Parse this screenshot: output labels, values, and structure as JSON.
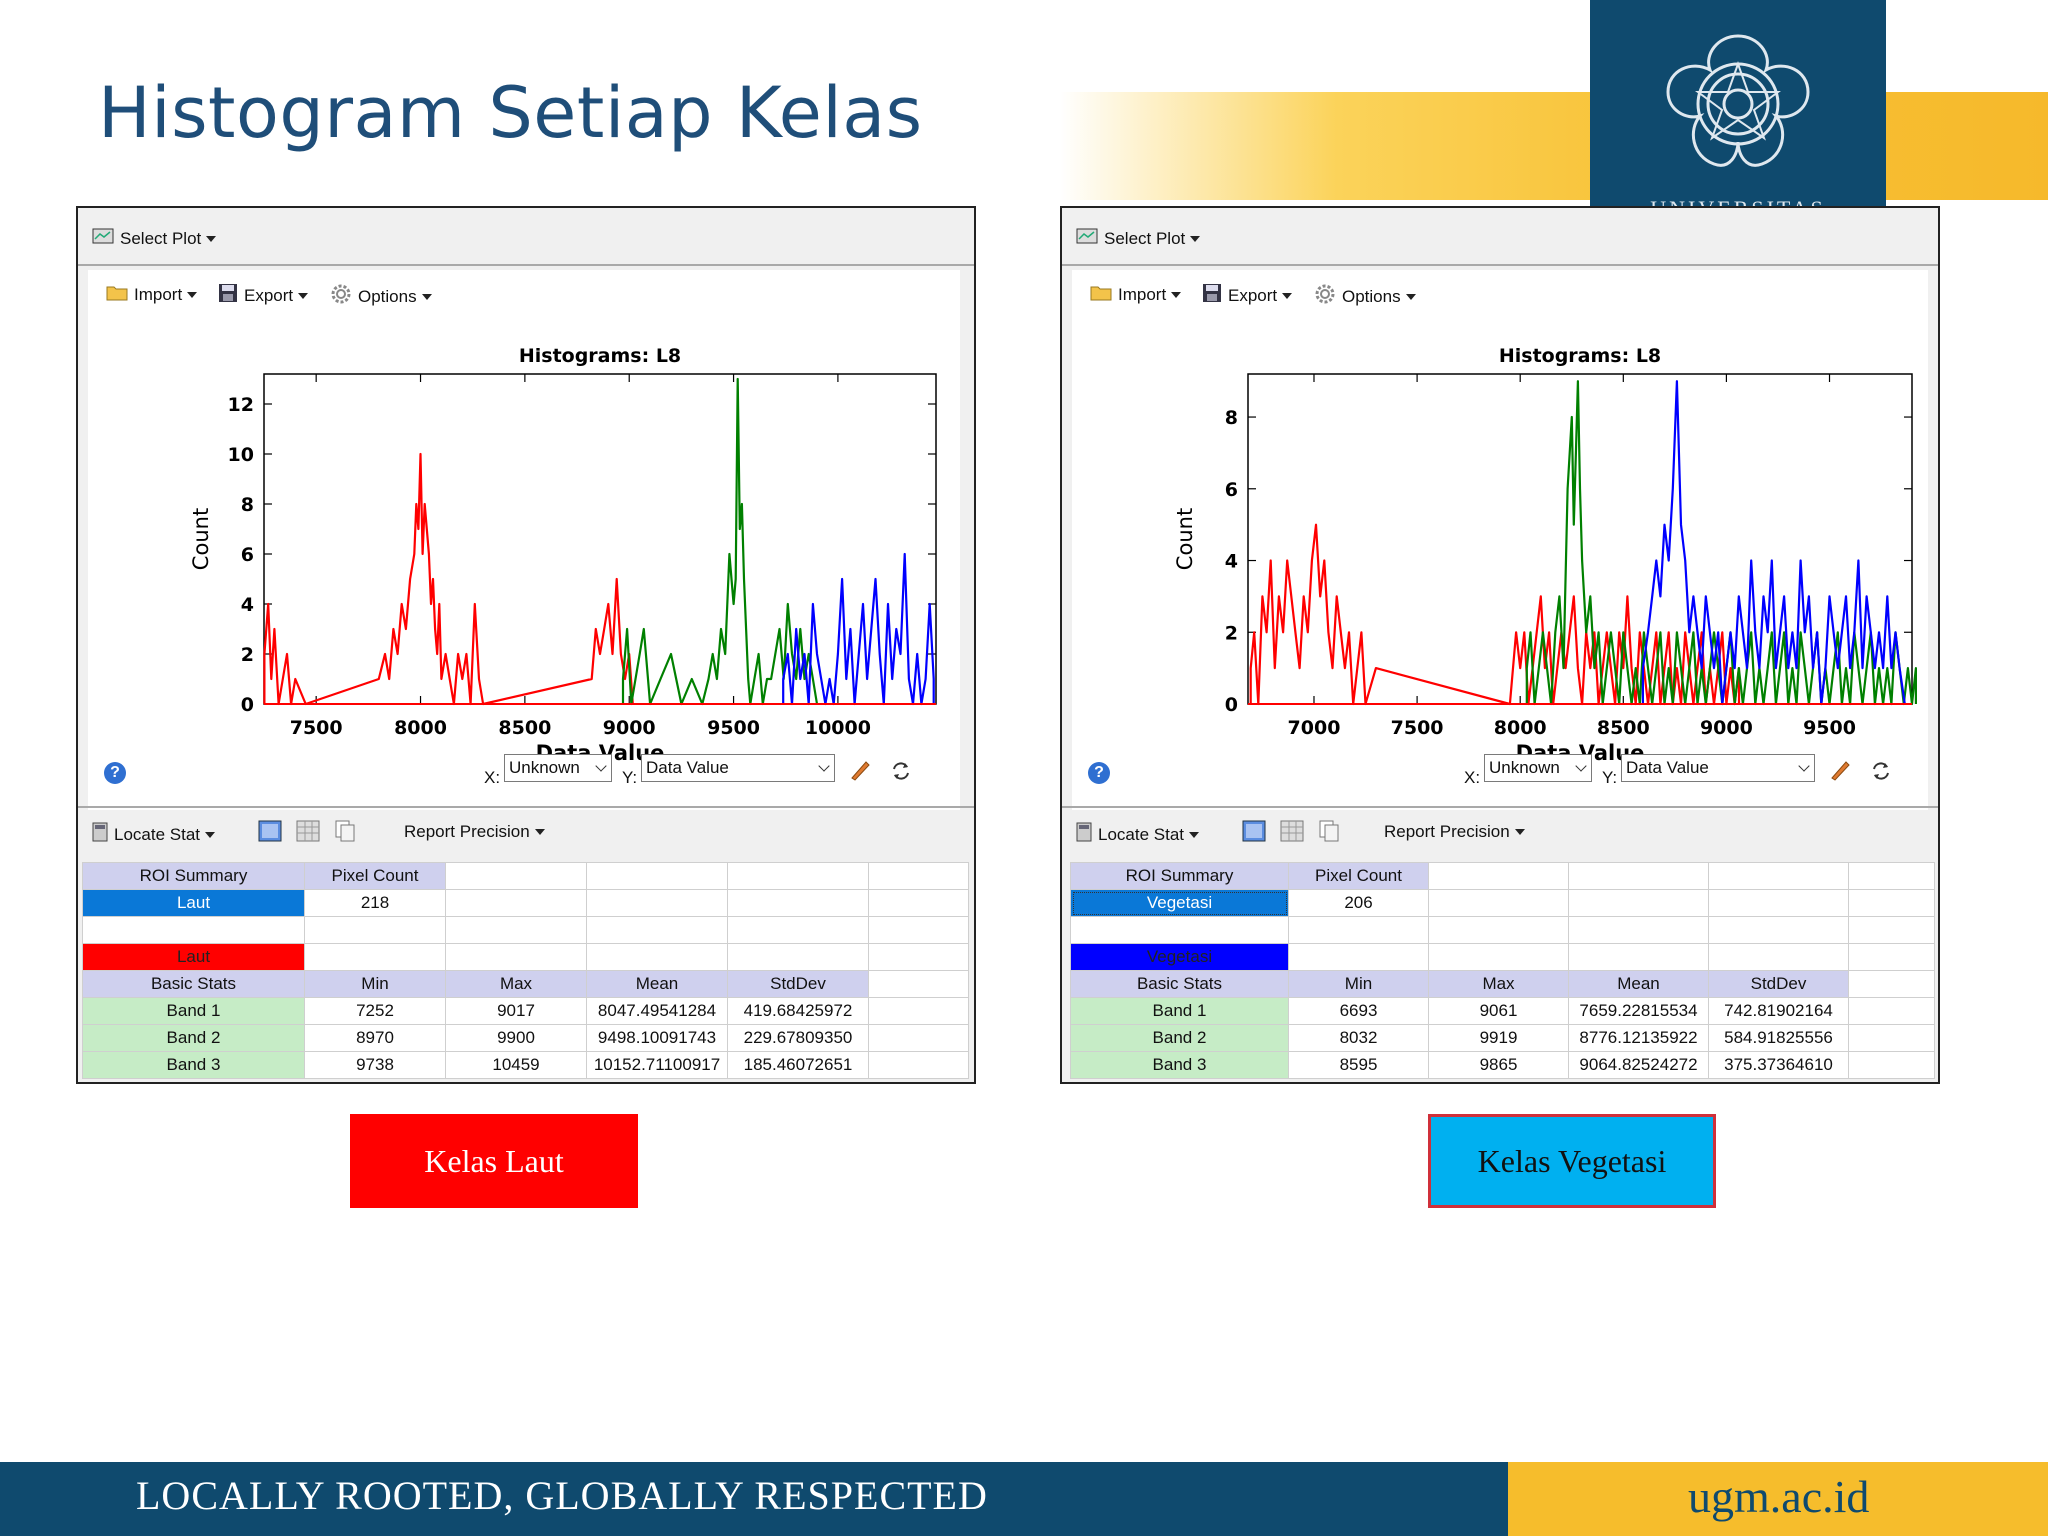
{
  "slide": {
    "title": "Histogram Setiap Kelas"
  },
  "logo": {
    "text": "UNIVERSITAS"
  },
  "footer": {
    "motto": "LOCALLY ROOTED, GLOBALLY RESPECTED",
    "url": "ugm.ac.id"
  },
  "colors": {
    "navy": "#0f4a6e",
    "gold": "#f6bd2c",
    "red": "#ff0000",
    "sky": "#00b0f0",
    "band_red": "#ff0000",
    "band_green": "#008000",
    "band_blue": "#0000ff"
  },
  "captions": {
    "left": "Kelas Laut",
    "right": "Kelas Vegetasi"
  },
  "panels": [
    {
      "toolbar": {
        "select_plot": "Select Plot",
        "import": "Import",
        "export": "Export",
        "options": "Options",
        "locate_stat": "Locate Stat",
        "report_precision": "Report Precision"
      },
      "x_label_prefix": "X:",
      "y_label_prefix": "Y:",
      "x_select": "Unknown",
      "y_select": "Data Value",
      "roi_summary": "ROI Summary",
      "pixel_count": "Pixel Count",
      "roi_name": "Laut",
      "pixel_value": "218",
      "color_label": "Laut",
      "roi_color": "#0a78d7",
      "swatch_color": "#ff0000",
      "stats_headers": [
        "Basic Stats",
        "Min",
        "Max",
        "Mean",
        "StdDev"
      ],
      "bands": [
        {
          "name": "Band 1",
          "min": "7252",
          "max": "9017",
          "mean": "8047.49541284",
          "std": "419.68425972"
        },
        {
          "name": "Band 2",
          "min": "8970",
          "max": "9900",
          "mean": "9498.10091743",
          "std": "229.67809350"
        },
        {
          "name": "Band 3",
          "min": "9738",
          "max": "10459",
          "mean": "10152.71100917",
          "std": "185.46072651"
        }
      ]
    },
    {
      "toolbar": {
        "select_plot": "Select Plot",
        "import": "Import",
        "export": "Export",
        "options": "Options",
        "locate_stat": "Locate Stat",
        "report_precision": "Report Precision"
      },
      "x_label_prefix": "X:",
      "y_label_prefix": "Y:",
      "x_select": "Unknown",
      "y_select": "Data Value",
      "roi_summary": "ROI Summary",
      "pixel_count": "Pixel Count",
      "roi_name": "Vegetasi",
      "pixel_value": "206",
      "color_label": "Vegetasi",
      "roi_color": "#0a78d7",
      "swatch_color": "#0000ff",
      "stats_headers": [
        "Basic Stats",
        "Min",
        "Max",
        "Mean",
        "StdDev"
      ],
      "bands": [
        {
          "name": "Band 1",
          "min": "6693",
          "max": "9061",
          "mean": "7659.22815534",
          "std": "742.81902164"
        },
        {
          "name": "Band 2",
          "min": "8032",
          "max": "9919",
          "mean": "8776.12135922",
          "std": "584.91825556"
        },
        {
          "name": "Band 3",
          "min": "8595",
          "max": "9865",
          "mean": "9064.82524272",
          "std": "375.37364610"
        }
      ]
    }
  ],
  "chart_data": [
    {
      "type": "line",
      "title": "Histograms: L8",
      "xlabel": "Data Value",
      "ylabel": "Count",
      "xlim": [
        7250,
        10470
      ],
      "ylim": [
        0,
        13.2
      ],
      "xticks": [
        7500,
        8000,
        8500,
        9000,
        9500,
        10000
      ],
      "yticks": [
        0,
        2,
        4,
        6,
        8,
        10,
        12
      ],
      "series": [
        {
          "color": "#ff0000",
          "x": [
            7252,
            7270,
            7285,
            7300,
            7320,
            7340,
            7360,
            7380,
            7400,
            7450,
            7800,
            7830,
            7850,
            7870,
            7890,
            7910,
            7930,
            7950,
            7970,
            7980,
            7990,
            8000,
            8010,
            8020,
            8030,
            8040,
            8050,
            8060,
            8070,
            8080,
            8090,
            8100,
            8120,
            8140,
            8160,
            8180,
            8200,
            8220,
            8240,
            8260,
            8280,
            8300,
            8820,
            8840,
            8860,
            8880,
            8900,
            8920,
            8940,
            8960,
            8980,
            9000,
            9017
          ],
          "y": [
            2,
            4,
            1,
            3,
            0,
            1,
            2,
            0,
            1,
            0,
            1,
            2,
            1,
            3,
            2,
            4,
            3,
            5,
            6,
            8,
            7,
            10,
            6,
            8,
            7,
            6,
            4,
            5,
            3,
            2,
            4,
            1,
            2,
            1,
            0,
            2,
            1,
            2,
            0,
            4,
            1,
            0,
            1,
            3,
            2,
            3,
            4,
            2,
            5,
            2,
            1,
            2,
            0
          ]
        },
        {
          "color": "#008000",
          "x": [
            8970,
            8990,
            9010,
            9030,
            9050,
            9070,
            9100,
            9150,
            9200,
            9250,
            9300,
            9350,
            9380,
            9400,
            9420,
            9440,
            9460,
            9480,
            9500,
            9510,
            9520,
            9530,
            9540,
            9550,
            9560,
            9570,
            9580,
            9600,
            9620,
            9640,
            9660,
            9680,
            9700,
            9720,
            9740,
            9760,
            9780,
            9800,
            9820,
            9840,
            9860,
            9880,
            9900
          ],
          "y": [
            1,
            3,
            0,
            1,
            2,
            3,
            0,
            1,
            2,
            0,
            1,
            0,
            1,
            2,
            1,
            3,
            2,
            6,
            4,
            5,
            13,
            7,
            8,
            5,
            3,
            1,
            0,
            1,
            2,
            0,
            1,
            1,
            2,
            3,
            1,
            4,
            2,
            1,
            3,
            1,
            2,
            1,
            0
          ]
        },
        {
          "color": "#0000ff",
          "x": [
            9738,
            9760,
            9780,
            9800,
            9820,
            9840,
            9860,
            9880,
            9900,
            9920,
            9940,
            9960,
            9980,
            10000,
            10020,
            10040,
            10060,
            10080,
            10100,
            10120,
            10140,
            10160,
            10180,
            10200,
            10220,
            10240,
            10260,
            10280,
            10300,
            10320,
            10340,
            10360,
            10380,
            10400,
            10420,
            10440,
            10459
          ],
          "y": [
            1,
            2,
            0,
            3,
            1,
            2,
            0,
            4,
            2,
            1,
            0,
            1,
            0,
            2,
            5,
            1,
            3,
            0,
            2,
            4,
            1,
            3,
            5,
            2,
            0,
            4,
            1,
            3,
            2,
            6,
            1,
            0,
            2,
            0,
            1,
            4,
            1
          ]
        }
      ]
    },
    {
      "type": "line",
      "title": "Histograms: L8",
      "xlabel": "Data Value",
      "ylabel": "Count",
      "xlim": [
        6680,
        9900
      ],
      "ylim": [
        0,
        9.2
      ],
      "xticks": [
        7000,
        7500,
        8000,
        8500,
        9000,
        9500
      ],
      "yticks": [
        0,
        2,
        4,
        6,
        8
      ],
      "series": [
        {
          "color": "#ff0000",
          "x": [
            6693,
            6710,
            6730,
            6750,
            6770,
            6790,
            6810,
            6830,
            6850,
            6870,
            6890,
            6910,
            6930,
            6950,
            6970,
            6990,
            7010,
            7030,
            7050,
            7070,
            7090,
            7110,
            7130,
            7150,
            7170,
            7190,
            7210,
            7230,
            7250,
            7300,
            7950,
            7980,
            8000,
            8020,
            8040,
            8060,
            8080,
            8100,
            8120,
            8140,
            8160,
            8180,
            8200,
            8220,
            8240,
            8260,
            8280,
            8300,
            8320,
            8340,
            8360,
            8380,
            8400,
            8420,
            8440,
            8460,
            8480,
            8500,
            8520,
            8540,
            8560,
            8580,
            8600,
            8620,
            8640,
            8660,
            8680,
            8700,
            8720,
            8740,
            8760,
            8780,
            8800,
            8820,
            8840,
            8860,
            8880,
            8900,
            8920,
            8940,
            8960,
            8980,
            9000,
            9020,
            9040,
            9061
          ],
          "y": [
            1,
            2,
            0,
            3,
            2,
            4,
            1,
            3,
            2,
            4,
            3,
            2,
            1,
            3,
            2,
            4,
            5,
            3,
            4,
            2,
            1,
            3,
            2,
            1,
            2,
            0,
            1,
            2,
            0,
            1,
            0,
            2,
            1,
            2,
            0,
            1,
            2,
            3,
            1,
            2,
            0,
            1,
            2,
            1,
            2,
            3,
            1,
            0,
            2,
            1,
            2,
            0,
            1,
            2,
            1,
            0,
            2,
            1,
            3,
            1,
            0,
            2,
            1,
            0,
            1,
            2,
            0,
            1,
            2,
            0,
            1,
            0,
            2,
            1,
            0,
            1,
            2,
            0,
            1,
            0,
            1,
            2,
            0,
            1,
            0,
            1
          ]
        },
        {
          "color": "#008000",
          "x": [
            8032,
            8050,
            8070,
            8090,
            8110,
            8130,
            8150,
            8170,
            8190,
            8210,
            8230,
            8250,
            8260,
            8270,
            8280,
            8290,
            8300,
            8320,
            8340,
            8360,
            8380,
            8400,
            8420,
            8440,
            8460,
            8480,
            8500,
            8520,
            8540,
            8560,
            8580,
            8600,
            8620,
            8640,
            8660,
            8680,
            8700,
            8720,
            8740,
            8760,
            8780,
            8800,
            8820,
            8840,
            8860,
            8880,
            8900,
            8920,
            8940,
            8960,
            8980,
            9000,
            9020,
            9040,
            9060,
            9080,
            9100,
            9120,
            9140,
            9160,
            9180,
            9200,
            9220,
            9240,
            9260,
            9280,
            9300,
            9320,
            9340,
            9360,
            9380,
            9400,
            9420,
            9440,
            9460,
            9480,
            9500,
            9520,
            9540,
            9560,
            9580,
            9600,
            9620,
            9640,
            9660,
            9680,
            9700,
            9720,
            9740,
            9760,
            9780,
            9800,
            9820,
            9840,
            9860,
            9880,
            9900,
            9919
          ],
          "y": [
            1,
            2,
            0,
            1,
            2,
            1,
            0,
            2,
            3,
            1,
            6,
            8,
            5,
            7,
            9,
            6,
            4,
            2,
            3,
            1,
            2,
            0,
            1,
            2,
            1,
            0,
            2,
            1,
            0,
            1,
            0,
            2,
            1,
            0,
            1,
            2,
            0,
            1,
            0,
            2,
            1,
            0,
            1,
            2,
            0,
            1,
            0,
            1,
            2,
            1,
            0,
            1,
            2,
            0,
            1,
            0,
            1,
            2,
            0,
            1,
            0,
            1,
            2,
            0,
            1,
            2,
            0,
            1,
            0,
            2,
            1,
            0,
            1,
            2,
            0,
            1,
            0,
            1,
            2,
            0,
            1,
            0,
            2,
            1,
            0,
            1,
            2,
            0,
            1,
            0,
            1,
            0,
            2,
            1,
            0,
            1,
            0,
            1
          ]
        },
        {
          "color": "#0000ff",
          "x": [
            8595,
            8620,
            8640,
            8660,
            8680,
            8700,
            8720,
            8740,
            8760,
            8780,
            8800,
            8820,
            8840,
            8860,
            8880,
            8900,
            8920,
            8940,
            8960,
            8980,
            9000,
            9020,
            9040,
            9060,
            9080,
            9100,
            9120,
            9140,
            9160,
            9180,
            9200,
            9220,
            9240,
            9260,
            9280,
            9300,
            9320,
            9340,
            9360,
            9380,
            9400,
            9420,
            9440,
            9460,
            9480,
            9500,
            9520,
            9540,
            9560,
            9580,
            9600,
            9620,
            9640,
            9660,
            9680,
            9700,
            9720,
            9740,
            9760,
            9780,
            9800,
            9820,
            9840,
            9865
          ],
          "y": [
            1,
            2,
            3,
            4,
            3,
            5,
            4,
            6,
            9,
            5,
            4,
            2,
            3,
            2,
            1,
            3,
            2,
            1,
            2,
            0,
            1,
            2,
            1,
            3,
            2,
            1,
            4,
            2,
            1,
            3,
            2,
            4,
            1,
            2,
            3,
            1,
            2,
            1,
            4,
            2,
            3,
            1,
            2,
            0,
            1,
            3,
            2,
            1,
            2,
            3,
            1,
            2,
            4,
            1,
            3,
            2,
            1,
            2,
            1,
            3,
            1,
            2,
            1,
            0
          ]
        }
      ]
    }
  ]
}
